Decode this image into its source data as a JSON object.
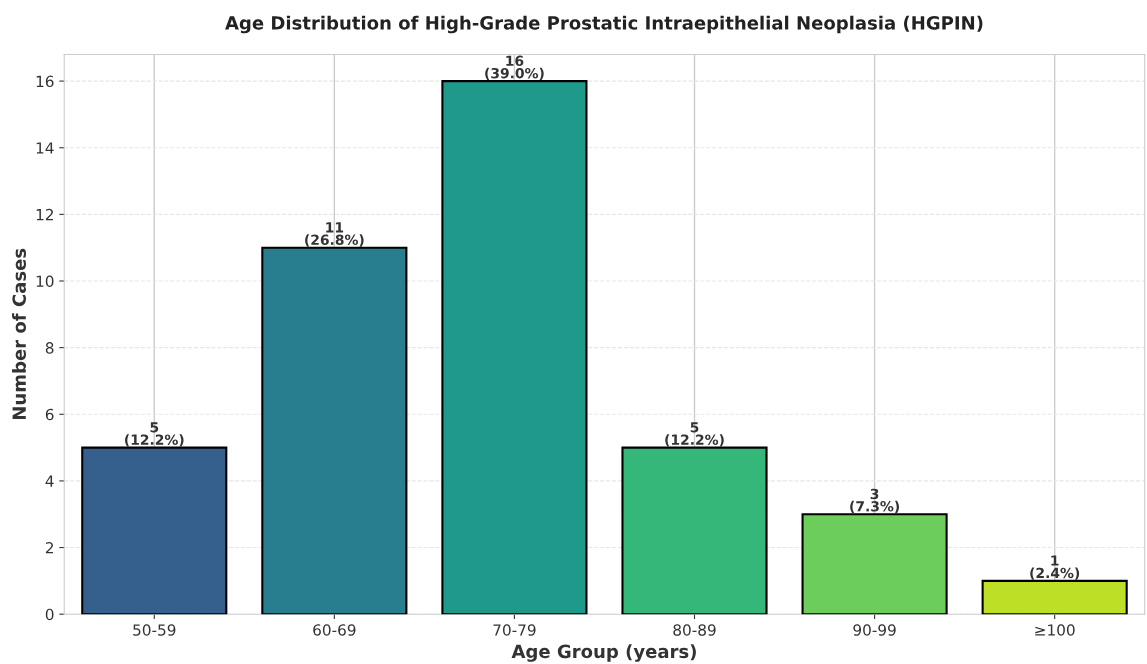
{
  "chart_data": {
    "type": "bar",
    "title": "Age Distribution of High-Grade Prostatic Intraepithelial Neoplasia (HGPIN)",
    "xlabel": "Age Group (years)",
    "ylabel": "Number of Cases",
    "categories": [
      "50-59",
      "60-69",
      "70-79",
      "80-89",
      "90-99",
      "≥100"
    ],
    "values": [
      5,
      11,
      16,
      5,
      3,
      1
    ],
    "colors": [
      "#355f8d",
      "#287d8e",
      "#1f998a",
      "#35b779",
      "#6ccd5a",
      "#bddf26"
    ],
    "value_labels": [
      "5\n(12.2%)",
      "11\n(26.8%)",
      "16\n(39.0%)",
      "5\n(12.2%)",
      "3\n(7.3%)",
      "1\n(2.4%)"
    ],
    "ylim": [
      0,
      16.8
    ],
    "yticks": [
      0,
      2,
      4,
      6,
      8,
      10,
      12,
      14,
      16
    ],
    "grid": true
  }
}
